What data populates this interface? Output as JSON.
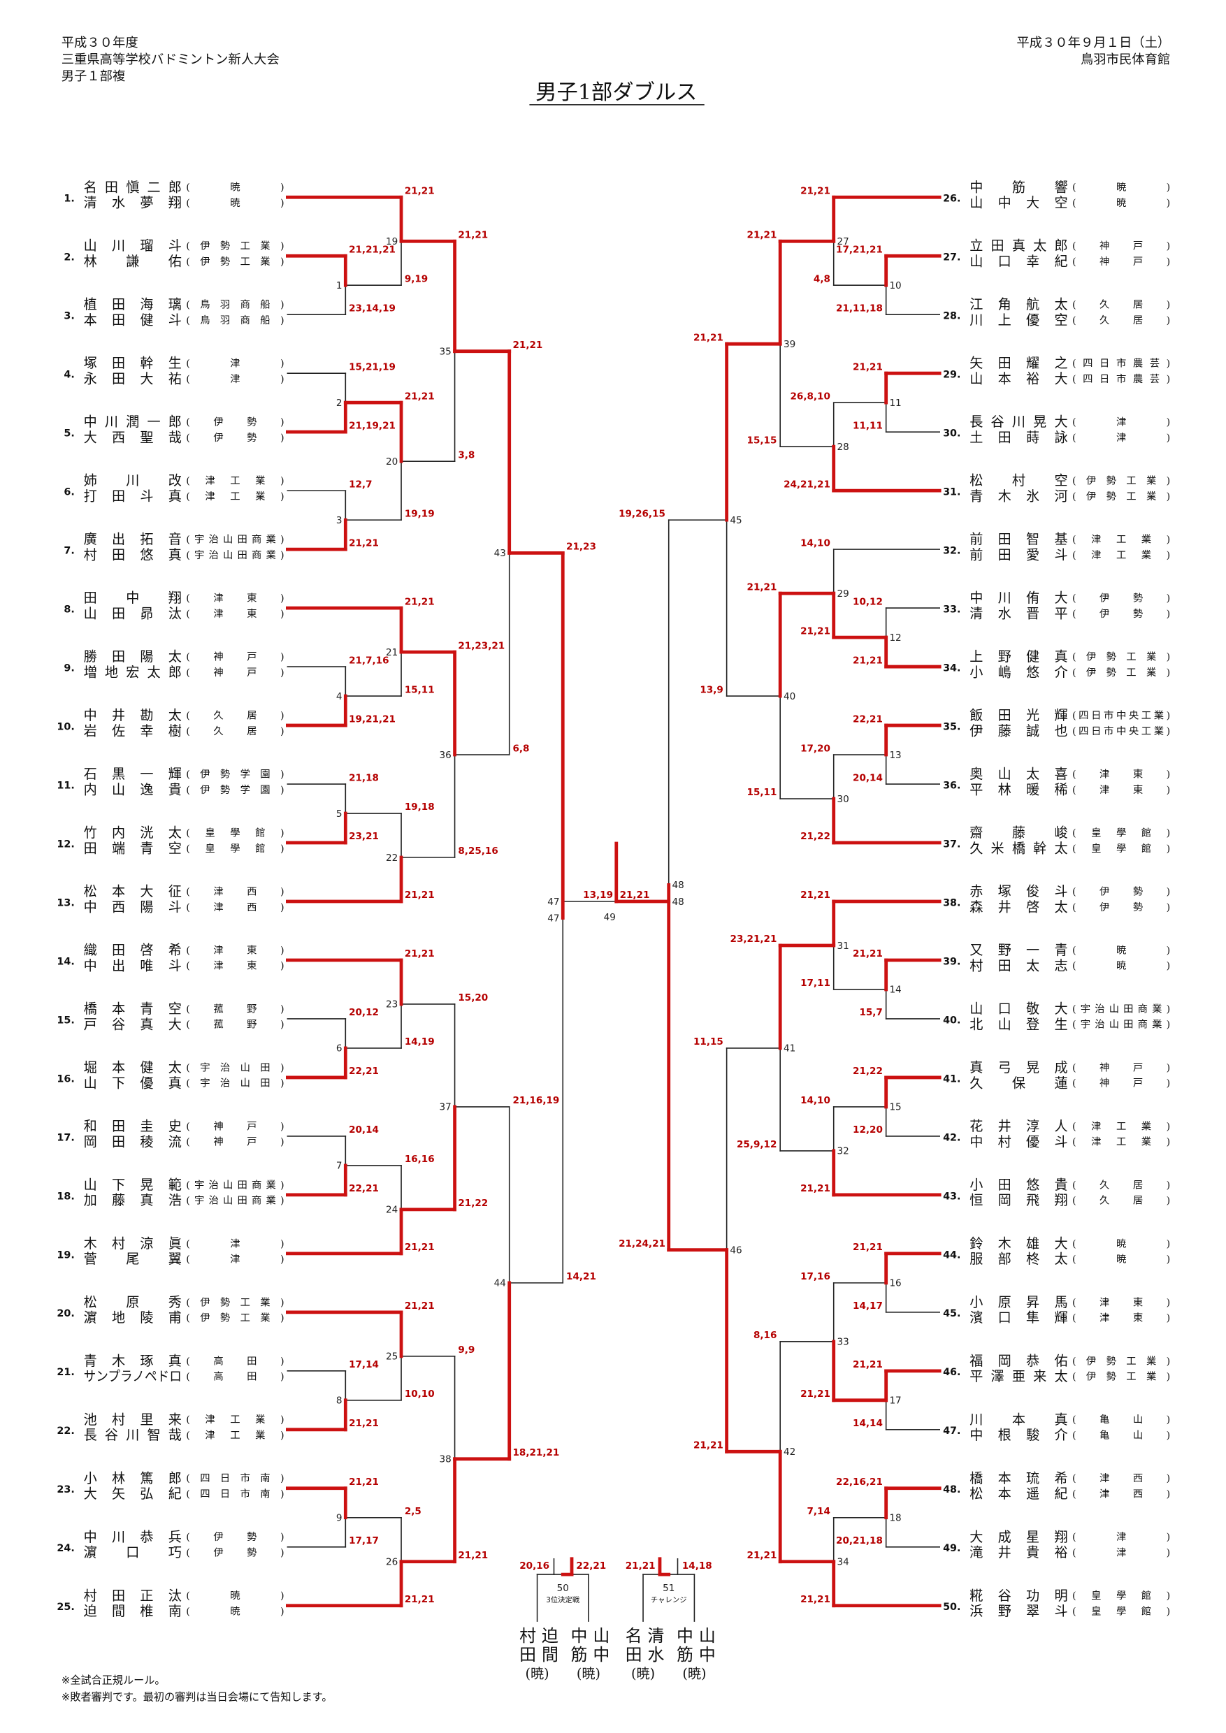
{
  "header": {
    "left": [
      "平成３０年度",
      "三重県高等学校バドミントン新人大会",
      "男子１部複"
    ],
    "right": [
      "平成３０年９月１日（土）",
      "鳥羽市民体育館"
    ]
  },
  "title": "男子1部ダブルス",
  "teams": [
    {
      "number": "1.",
      "players": [
        {
          "name": "名田愼二郎",
          "school": "(暁)"
        },
        {
          "name": "清水夢翔",
          "school": "(暁)"
        }
      ]
    },
    {
      "number": "2.",
      "players": [
        {
          "name": "山川瑠斗",
          "school": "(伊勢工業)"
        },
        {
          "name": "林謙佑",
          "school": "(伊勢工業)"
        }
      ]
    },
    {
      "number": "3.",
      "players": [
        {
          "name": "植田海璃",
          "school": "(鳥羽商船)"
        },
        {
          "name": "本田健斗",
          "school": "(鳥羽商船)"
        }
      ]
    },
    {
      "number": "4.",
      "players": [
        {
          "name": "塚田幹生",
          "school": "(津)"
        },
        {
          "name": "永田大祐",
          "school": "(津)"
        }
      ]
    },
    {
      "number": "5.",
      "players": [
        {
          "name": "中川潤一郎",
          "school": "(伊勢)"
        },
        {
          "name": "大西聖哉",
          "school": "(伊勢)"
        }
      ]
    },
    {
      "number": "6.",
      "players": [
        {
          "name": "姉川改",
          "school": "(津工業)"
        },
        {
          "name": "打田斗真",
          "school": "(津工業)"
        }
      ]
    },
    {
      "number": "7.",
      "players": [
        {
          "name": "廣出拓音",
          "school": "(宇治山田商業)"
        },
        {
          "name": "村田悠真",
          "school": "(宇治山田商業)"
        }
      ]
    },
    {
      "number": "8.",
      "players": [
        {
          "name": "田中翔",
          "school": "(津東)"
        },
        {
          "name": "山田昴汰",
          "school": "(津東)"
        }
      ]
    },
    {
      "number": "9.",
      "players": [
        {
          "name": "勝田陽太",
          "school": "(神戸)"
        },
        {
          "name": "増地宏太郎",
          "school": "(神戸)"
        }
      ]
    },
    {
      "number": "10.",
      "players": [
        {
          "name": "中井勘太",
          "school": "(久居)"
        },
        {
          "name": "岩佐幸樹",
          "school": "(久居)"
        }
      ]
    },
    {
      "number": "11.",
      "players": [
        {
          "name": "石黒一輝",
          "school": "(伊勢学園)"
        },
        {
          "name": "内山逸貴",
          "school": "(伊勢学園)"
        }
      ]
    },
    {
      "number": "12.",
      "players": [
        {
          "name": "竹内洸太",
          "school": "(皇學館)"
        },
        {
          "name": "田端青空",
          "school": "(皇學館)"
        }
      ]
    },
    {
      "number": "13.",
      "players": [
        {
          "name": "松本大征",
          "school": "(津西)"
        },
        {
          "name": "中西陽斗",
          "school": "(津西)"
        }
      ]
    },
    {
      "number": "14.",
      "players": [
        {
          "name": "織田啓希",
          "school": "(津東)"
        },
        {
          "name": "中出唯斗",
          "school": "(津東)"
        }
      ]
    },
    {
      "number": "15.",
      "players": [
        {
          "name": "橋本青空",
          "school": "(菰野)"
        },
        {
          "name": "戸谷真大",
          "school": "(菰野)"
        }
      ]
    },
    {
      "number": "16.",
      "players": [
        {
          "name": "堀本健太",
          "school": "(宇治山田)"
        },
        {
          "name": "山下優真",
          "school": "(宇治山田)"
        }
      ]
    },
    {
      "number": "17.",
      "players": [
        {
          "name": "和田圭史",
          "school": "(神戸)"
        },
        {
          "name": "岡田稜流",
          "school": "(神戸)"
        }
      ]
    },
    {
      "number": "18.",
      "players": [
        {
          "name": "山下晃範",
          "school": "(宇治山田商業)"
        },
        {
          "name": "加藤真浩",
          "school": "(宇治山田商業)"
        }
      ]
    },
    {
      "number": "19.",
      "players": [
        {
          "name": "木村涼眞",
          "school": "(津)"
        },
        {
          "name": "菅尾翼",
          "school": "(津)"
        }
      ]
    },
    {
      "number": "20.",
      "players": [
        {
          "name": "松原秀",
          "school": "(伊勢工業)"
        },
        {
          "name": "濵地陵甫",
          "school": "(伊勢工業)"
        }
      ]
    },
    {
      "number": "21.",
      "players": [
        {
          "name": "青木琢真",
          "school": "(高田)"
        },
        {
          "name": "サンプラノペドロ",
          "school": "(高田)"
        }
      ]
    },
    {
      "number": "22.",
      "players": [
        {
          "name": "池村里来",
          "school": "(津工業)"
        },
        {
          "name": "長谷川智哉",
          "school": "(津工業)"
        }
      ]
    },
    {
      "number": "23.",
      "players": [
        {
          "name": "小林篤郎",
          "school": "(四日市南)"
        },
        {
          "name": "大矢弘紀",
          "school": "(四日市南)"
        }
      ]
    },
    {
      "number": "24.",
      "players": [
        {
          "name": "中川恭兵",
          "school": "(伊勢)"
        },
        {
          "name": "濵口巧",
          "school": "(伊勢)"
        }
      ]
    },
    {
      "number": "25.",
      "players": [
        {
          "name": "村田正汰",
          "school": "(暁)"
        },
        {
          "name": "迫間椎南",
          "school": "(暁)"
        }
      ]
    },
    {
      "number": "26.",
      "players": [
        {
          "name": "中筋響",
          "school": "(暁)"
        },
        {
          "name": "山中大空",
          "school": "(暁)"
        }
      ]
    },
    {
      "number": "27.",
      "players": [
        {
          "name": "立田真太郎",
          "school": "(神戸)"
        },
        {
          "name": "山口幸紀",
          "school": "(神戸)"
        }
      ]
    },
    {
      "number": "28.",
      "players": [
        {
          "name": "江角航太",
          "school": "(久居)"
        },
        {
          "name": "川上優空",
          "school": "(久居)"
        }
      ]
    },
    {
      "number": "29.",
      "players": [
        {
          "name": "矢田耀之",
          "school": "(四日市農芸)"
        },
        {
          "name": "山本裕大",
          "school": "(四日市農芸)"
        }
      ]
    },
    {
      "number": "30.",
      "players": [
        {
          "name": "長谷川晃大",
          "school": "(津)"
        },
        {
          "name": "土田蒔詠",
          "school": "(津)"
        }
      ]
    },
    {
      "number": "31.",
      "players": [
        {
          "name": "松村空",
          "school": "(伊勢工業)"
        },
        {
          "name": "青木氷河",
          "school": "(伊勢工業)"
        }
      ]
    },
    {
      "number": "32.",
      "players": [
        {
          "name": "前田智基",
          "school": "(津工業)"
        },
        {
          "name": "前田愛斗",
          "school": "(津工業)"
        }
      ]
    },
    {
      "number": "33.",
      "players": [
        {
          "name": "中川侑大",
          "school": "(伊勢)"
        },
        {
          "name": "清水晋平",
          "school": "(伊勢)"
        }
      ]
    },
    {
      "number": "34.",
      "players": [
        {
          "name": "上野健真",
          "school": "(伊勢工業)"
        },
        {
          "name": "小嶋悠介",
          "school": "(伊勢工業)"
        }
      ]
    },
    {
      "number": "35.",
      "players": [
        {
          "name": "飯田光輝",
          "school": "(四日市中央工業)"
        },
        {
          "name": "伊藤誠也",
          "school": "(四日市中央工業)"
        }
      ]
    },
    {
      "number": "36.",
      "players": [
        {
          "name": "奥山太喜",
          "school": "(津東)"
        },
        {
          "name": "平林暖稀",
          "school": "(津東)"
        }
      ]
    },
    {
      "number": "37.",
      "players": [
        {
          "name": "齋藤峻",
          "school": "(皇學館)"
        },
        {
          "name": "久米橋幹太",
          "school": "(皇學館)"
        }
      ]
    },
    {
      "number": "38.",
      "players": [
        {
          "name": "赤塚俊斗",
          "school": "(伊勢)"
        },
        {
          "name": "森井啓太",
          "school": "(伊勢)"
        }
      ]
    },
    {
      "number": "39.",
      "players": [
        {
          "name": "又野一青",
          "school": "(暁)"
        },
        {
          "name": "村田太志",
          "school": "(暁)"
        }
      ]
    },
    {
      "number": "40.",
      "players": [
        {
          "name": "山口敬大",
          "school": "(宇治山田商業)"
        },
        {
          "name": "北山登生",
          "school": "(宇治山田商業)"
        }
      ]
    },
    {
      "number": "41.",
      "players": [
        {
          "name": "真弓晃成",
          "school": "(神戸)"
        },
        {
          "name": "久保蓮",
          "school": "(神戸)"
        }
      ]
    },
    {
      "number": "42.",
      "players": [
        {
          "name": "花井淳人",
          "school": "(津工業)"
        },
        {
          "name": "中村優斗",
          "school": "(津工業)"
        }
      ]
    },
    {
      "number": "43.",
      "players": [
        {
          "name": "小田悠貴",
          "school": "(久居)"
        },
        {
          "name": "恒岡飛翔",
          "school": "(久居)"
        }
      ]
    },
    {
      "number": "44.",
      "players": [
        {
          "name": "鈴木雄大",
          "school": "(暁)"
        },
        {
          "name": "服部柊太",
          "school": "(暁)"
        }
      ]
    },
    {
      "number": "45.",
      "players": [
        {
          "name": "小原昇馬",
          "school": "(津東)"
        },
        {
          "name": "濱口隼輝",
          "school": "(津東)"
        }
      ]
    },
    {
      "number": "46.",
      "players": [
        {
          "name": "福岡恭佑",
          "school": "(伊勢工業)"
        },
        {
          "name": "平澤亜来太",
          "school": "(伊勢工業)"
        }
      ]
    },
    {
      "number": "47.",
      "players": [
        {
          "name": "川本真",
          "school": "(亀山)"
        },
        {
          "name": "中根駿介",
          "school": "(亀山)"
        }
      ]
    },
    {
      "number": "48.",
      "players": [
        {
          "name": "橋本琉希",
          "school": "(津西)"
        },
        {
          "name": "松本遥紀",
          "school": "(津西)"
        }
      ]
    },
    {
      "number": "49.",
      "players": [
        {
          "name": "大成星翔",
          "school": "(津)"
        },
        {
          "name": "滝井貴裕",
          "school": "(津)"
        }
      ]
    },
    {
      "number": "50.",
      "players": [
        {
          "name": "糀谷功明",
          "school": "(皇學館)"
        },
        {
          "name": "浜野翠斗",
          "school": "(皇學館)"
        }
      ]
    }
  ],
  "matches": [
    {
      "number": "1",
      "scores": [
        "21,21,21",
        "23,14,19"
      ]
    },
    {
      "number": "2",
      "scores": [
        "15,21,19",
        "21,19,21"
      ]
    },
    {
      "number": "3",
      "scores": [
        "12,7",
        "21,21"
      ]
    },
    {
      "number": "4",
      "scores": [
        "21,7,16",
        "19,21,21"
      ]
    },
    {
      "number": "5",
      "scores": [
        "21,18",
        "23,21"
      ]
    },
    {
      "number": "6",
      "scores": [
        "20,12",
        "22,21"
      ]
    },
    {
      "number": "7",
      "scores": [
        "20,14",
        "22,21"
      ]
    },
    {
      "number": "8",
      "scores": [
        "17,14",
        "21,21"
      ]
    },
    {
      "number": "9",
      "scores": [
        "21,21",
        "17,17"
      ]
    },
    {
      "number": "10",
      "scores": [
        "17,21,21",
        "21,11,18"
      ]
    },
    {
      "number": "11",
      "scores": [
        "21,21",
        "11,11"
      ]
    },
    {
      "number": "12",
      "scores": [
        "10,12",
        "21,21"
      ]
    },
    {
      "number": "13",
      "scores": [
        "22,21",
        "20,14"
      ]
    },
    {
      "number": "14",
      "scores": [
        "21,21",
        "15,7"
      ]
    },
    {
      "number": "15",
      "scores": [
        "21,22",
        "12,20"
      ]
    },
    {
      "number": "16",
      "scores": [
        "21,21",
        "14,17"
      ]
    },
    {
      "number": "17",
      "scores": [
        "21,21",
        "14,14"
      ]
    },
    {
      "number": "18",
      "scores": [
        "22,16,21",
        "20,21,18"
      ]
    },
    {
      "number": "19",
      "scores": [
        "21,21",
        "9,19"
      ]
    },
    {
      "number": "20",
      "scores": [
        "21,21",
        "19,19"
      ]
    },
    {
      "number": "21",
      "scores": [
        "21,21",
        "15,11"
      ]
    },
    {
      "number": "22",
      "scores": [
        "19,18",
        "21,21"
      ]
    },
    {
      "number": "23",
      "scores": [
        "21,21",
        "14,19"
      ]
    },
    {
      "number": "24",
      "scores": [
        "16,16",
        "21,21"
      ]
    },
    {
      "number": "25",
      "scores": [
        "21,21",
        "10,10"
      ]
    },
    {
      "number": "26",
      "scores": [
        "2,5",
        "21,21"
      ]
    },
    {
      "number": "27",
      "scores": [
        "21,21",
        "4,8"
      ]
    },
    {
      "number": "28",
      "scores": [
        "26,8,10",
        "24,21,21"
      ]
    },
    {
      "number": "29",
      "scores": [
        "14,10",
        "21,21"
      ]
    },
    {
      "number": "30",
      "scores": [
        "17,20",
        "21,22"
      ]
    },
    {
      "number": "31",
      "scores": [
        "21,21",
        "17,11"
      ]
    },
    {
      "number": "32",
      "scores": [
        "14,10",
        "21,21"
      ]
    },
    {
      "number": "33",
      "scores": [
        "17,16",
        "21,21"
      ]
    },
    {
      "number": "34",
      "scores": [
        "7,14",
        "21,21"
      ]
    },
    {
      "number": "35",
      "scores": [
        "21,21",
        "3,8"
      ]
    },
    {
      "number": "36",
      "scores": [
        "21,23,21",
        "8,25,16"
      ]
    },
    {
      "number": "37",
      "scores": [
        "15,20",
        "21,22"
      ]
    },
    {
      "number": "38",
      "scores": [
        "9,9",
        "21,21"
      ]
    },
    {
      "number": "39",
      "scores": [
        "21,21",
        "15,15"
      ]
    },
    {
      "number": "40",
      "scores": [
        "21,21",
        "15,11"
      ]
    },
    {
      "number": "41",
      "scores": [
        "23,21,21",
        "25,9,12"
      ]
    },
    {
      "number": "42",
      "scores": [
        "8,16",
        "21,21"
      ]
    },
    {
      "number": "43",
      "scores": [
        "21,21",
        "6,8"
      ]
    },
    {
      "number": "44",
      "scores": [
        "21,16,19",
        "18,21,21"
      ]
    },
    {
      "number": "45",
      "scores": [
        "21,21",
        "13,9"
      ]
    },
    {
      "number": "46",
      "scores": [
        "11,15",
        "21,21"
      ]
    },
    {
      "number": "47",
      "scores": [
        "21,23",
        "14,21"
      ]
    },
    {
      "number": "48",
      "scores": [
        "19,26,15",
        "21,24,21"
      ]
    },
    {
      "number": "49",
      "scores": [
        "13,19",
        "21,21"
      ]
    }
  ],
  "playoffs": [
    {
      "number": "50",
      "label": "3位決定戦",
      "scores": [
        "20,16",
        "22,21"
      ],
      "sides": [
        {
          "names": [
            "村田",
            "迫間"
          ],
          "school": "(暁)"
        },
        {
          "names": [
            "中筋",
            "山中"
          ],
          "school": "(暁)"
        }
      ]
    },
    {
      "number": "51",
      "label": "チャレンジ",
      "scores": [
        "21,21",
        "14,18"
      ],
      "sides": [
        {
          "names": [
            "名田",
            "清水"
          ],
          "school": "(暁)"
        },
        {
          "names": [
            "中筋",
            "山中"
          ],
          "school": "(暁)"
        }
      ]
    }
  ],
  "notes": [
    "※全試合正規ルール。",
    "※敗者審判です。最初の審判は当日会場にて告知します。"
  ]
}
